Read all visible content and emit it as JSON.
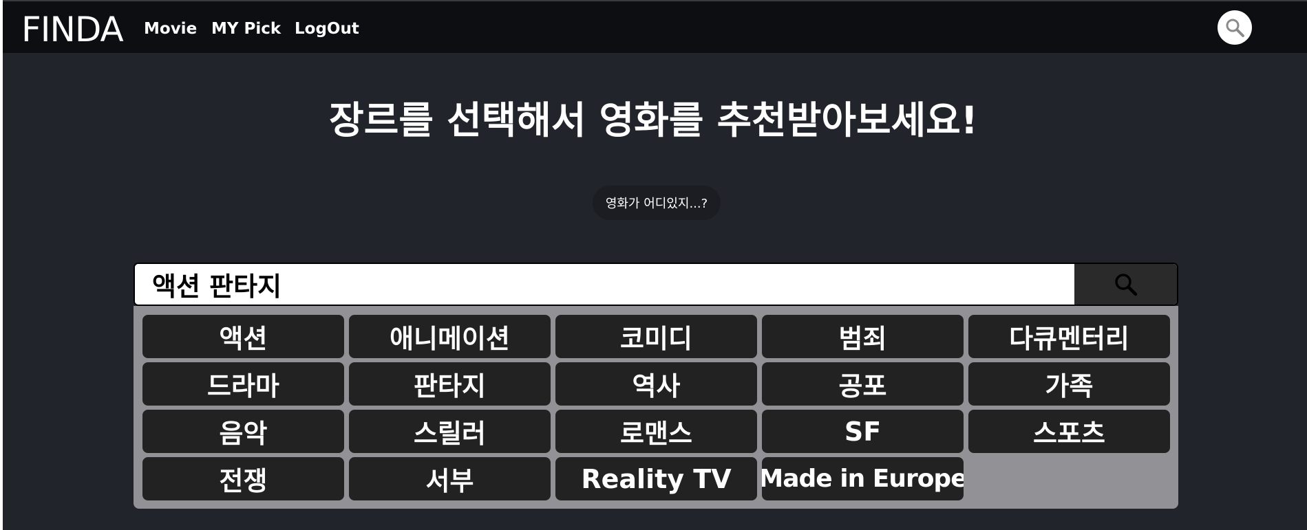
{
  "navbar": {
    "brand": "FINDA",
    "links": [
      "Movie",
      "MY Pick",
      "LogOut"
    ],
    "search_icon": "search-icon"
  },
  "main": {
    "headline": "장르를 선택해서 영화를 추천받아보세요!",
    "hint": "영화가 어디있지...?",
    "search": {
      "value": "액션 판타지",
      "button_icon": "search-icon"
    },
    "genres": [
      "액션",
      "애니메이션",
      "코미디",
      "범죄",
      "다큐멘터리",
      "드라마",
      "판타지",
      "역사",
      "공포",
      "가족",
      "음악",
      "스릴러",
      "로맨스",
      "SF",
      "스포츠",
      "전쟁",
      "서부",
      "Reality TV",
      "Made in Europe"
    ]
  },
  "colors": {
    "background": "#22242c",
    "navbar": "#0d0e12",
    "genre_panel": "#929296",
    "genre_button": "#222222",
    "search_button": "#2a2a2a"
  }
}
